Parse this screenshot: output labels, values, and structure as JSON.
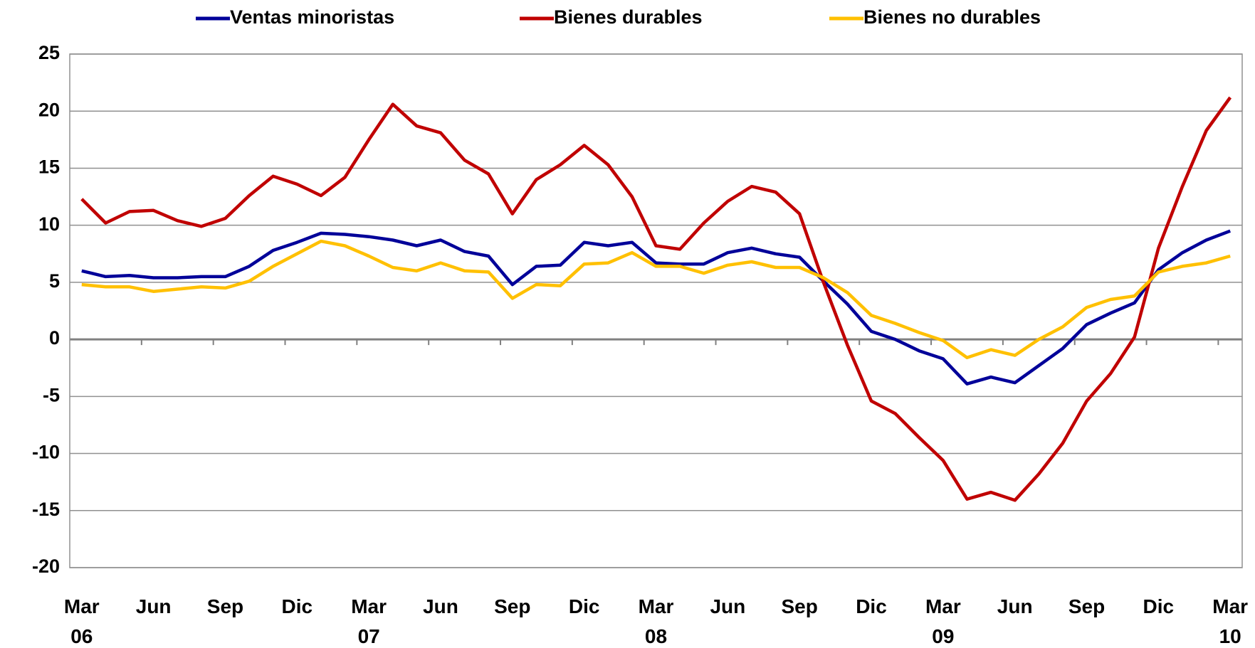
{
  "chart_data": {
    "type": "line",
    "categories": [
      "Mar\n06",
      null,
      null,
      "Jun",
      null,
      null,
      "Sep",
      null,
      null,
      "Dic",
      null,
      null,
      "Mar\n07",
      null,
      null,
      "Jun",
      null,
      null,
      "Sep",
      null,
      null,
      "Dic",
      null,
      null,
      "Mar\n08",
      null,
      null,
      "Jun",
      null,
      null,
      "Sep",
      null,
      null,
      "Dic",
      null,
      null,
      "Mar\n09",
      null,
      null,
      "Jun",
      null,
      null,
      "Sep",
      null,
      null,
      "Dic",
      null,
      null,
      "Mar\n10"
    ],
    "series": [
      {
        "name": "Ventas minoristas",
        "color": "#000099",
        "values": [
          6.0,
          5.5,
          5.6,
          5.4,
          5.4,
          5.5,
          5.5,
          6.4,
          7.8,
          8.5,
          9.3,
          9.2,
          9.0,
          8.7,
          8.2,
          8.7,
          7.7,
          7.3,
          4.8,
          6.4,
          6.5,
          8.5,
          8.2,
          8.5,
          6.7,
          6.6,
          6.6,
          7.6,
          8.0,
          7.5,
          7.2,
          5.1,
          3.1,
          0.7,
          0.0,
          -1.0,
          -1.7,
          -3.9,
          -3.3,
          -3.8,
          -2.3,
          -0.8,
          1.3,
          2.3,
          3.2,
          6.1,
          7.6,
          8.7,
          9.5
        ]
      },
      {
        "name": "Bienes durables",
        "color": "#c00000",
        "values": [
          12.3,
          10.2,
          11.2,
          11.3,
          10.4,
          9.9,
          10.6,
          12.6,
          14.3,
          13.6,
          12.6,
          14.2,
          17.5,
          20.6,
          18.7,
          18.1,
          15.7,
          14.5,
          11.0,
          14.0,
          15.3,
          17.0,
          15.3,
          12.5,
          8.2,
          7.9,
          10.2,
          12.1,
          13.4,
          12.9,
          11.0,
          5.0,
          -0.5,
          -5.4,
          -6.5,
          -8.6,
          -10.6,
          -14.0,
          -13.4,
          -14.1,
          -11.8,
          -9.1,
          -5.4,
          -3.0,
          0.2,
          8.0,
          13.4,
          18.3,
          21.2
        ]
      },
      {
        "name": "Bienes no durables",
        "color": "#ffc000",
        "values": [
          4.8,
          4.6,
          4.6,
          4.2,
          4.4,
          4.6,
          4.5,
          5.1,
          6.4,
          7.5,
          8.6,
          8.2,
          7.3,
          6.3,
          6.0,
          6.7,
          6.0,
          5.9,
          3.6,
          4.8,
          4.7,
          6.6,
          6.7,
          7.6,
          6.4,
          6.4,
          5.8,
          6.5,
          6.8,
          6.3,
          6.3,
          5.4,
          4.1,
          2.1,
          1.4,
          0.6,
          -0.1,
          -1.6,
          -0.9,
          -1.4,
          0.0,
          1.1,
          2.8,
          3.5,
          3.8,
          5.9,
          6.4,
          6.7,
          7.3
        ]
      }
    ],
    "ylim": [
      -20,
      25
    ],
    "yticks": [
      -20,
      -15,
      -10,
      -5,
      0,
      5,
      10,
      15,
      20,
      25
    ],
    "grid": true,
    "legend": "top"
  }
}
